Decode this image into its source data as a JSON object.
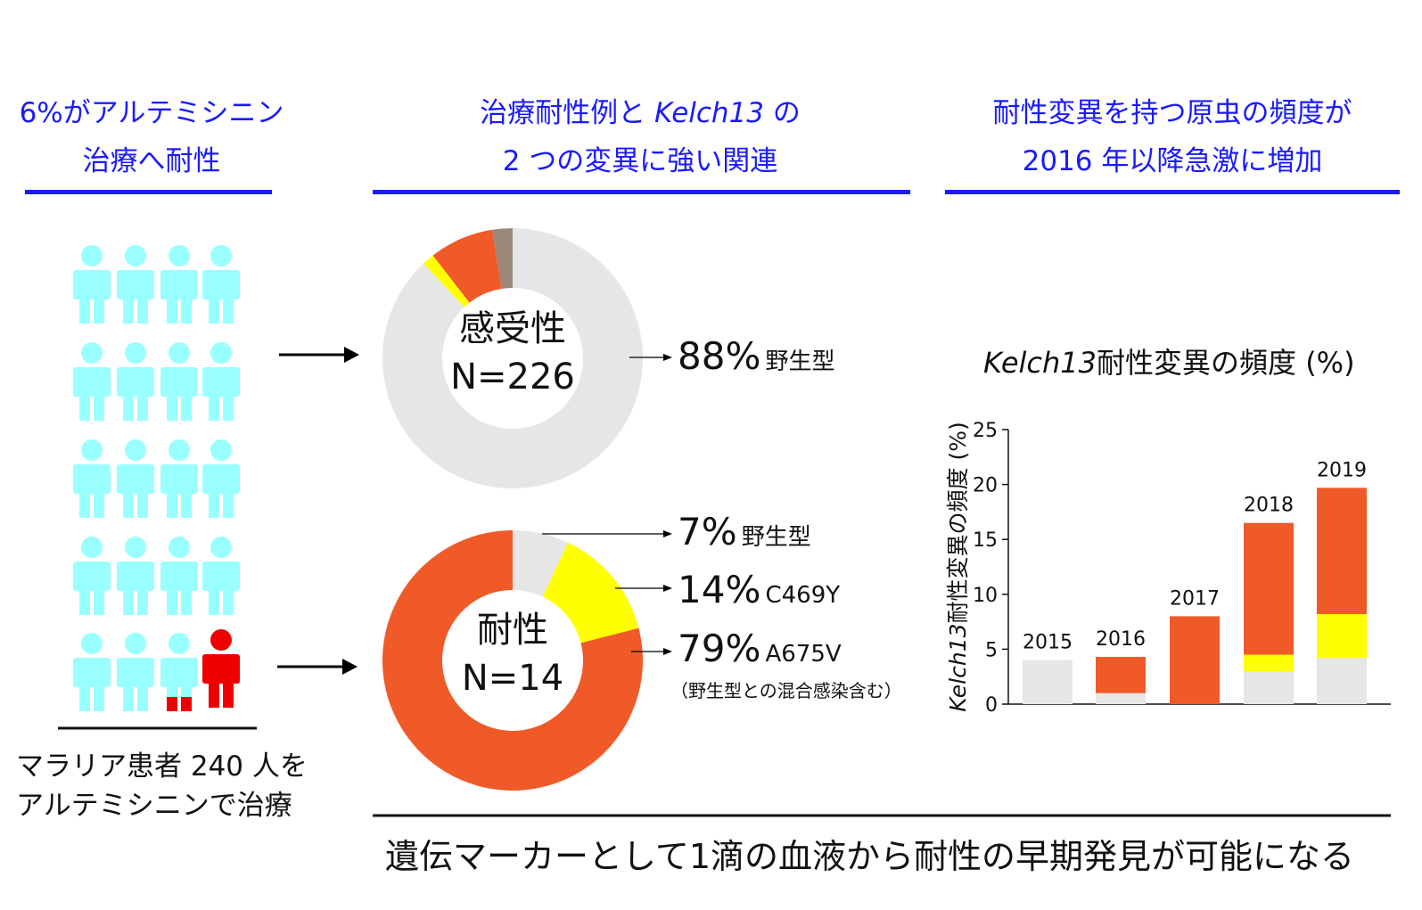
{
  "headers": {
    "col1": {
      "line1": "6%がアルテミシニン",
      "line2": "治療へ耐性"
    },
    "col2": {
      "line1_a": "治療耐性例と ",
      "line1_i": "Kelch13",
      "line1_b": " の",
      "line2": "2 つの変異に強い関連"
    },
    "col3": {
      "line1": "耐性変異を持つ原虫の頻度が",
      "line2": "2016 年以降急激に増加"
    }
  },
  "patients": {
    "caption_line1": "マラリア患者 240 人を",
    "caption_line2": "アルテミシニンで治療",
    "colors": {
      "susceptible": "#99ffff",
      "resistant": "#ee0000"
    }
  },
  "donuts": [
    {
      "center_line1": "感受性",
      "center_line2": "N=226",
      "slices": [
        {
          "value": 88,
          "color": "#e6e6e6"
        },
        {
          "value": 1.5,
          "color": "#ffff00"
        },
        {
          "value": 8,
          "color": "#f05a28"
        },
        {
          "value": 2.5,
          "color": "#9b8878"
        }
      ],
      "labels": [
        {
          "pct": "88%",
          "text": "野生型"
        }
      ]
    },
    {
      "center_line1": "耐性",
      "center_line2": "N=14",
      "slices": [
        {
          "value": 7,
          "color": "#e6e6e6"
        },
        {
          "value": 14,
          "color": "#ffff00"
        },
        {
          "value": 79,
          "color": "#f05a28"
        }
      ],
      "labels": [
        {
          "pct": "7%",
          "text": "野生型"
        },
        {
          "pct": "14%",
          "text": "C469Y"
        },
        {
          "pct": "79%",
          "text": "A675V",
          "note": "（野生型との混合感染含む）"
        }
      ]
    }
  ],
  "chart_title": {
    "italic": "Kelch13",
    "rest": "耐性変異の頻度 (%)"
  },
  "chart_data": {
    "type": "bar",
    "stacked": true,
    "categories": [
      "2015",
      "2016",
      "2017",
      "2018",
      "2019"
    ],
    "series": [
      {
        "values": [
          4,
          1,
          0,
          3,
          4.2
        ],
        "color": "#e6e6e6"
      },
      {
        "values": [
          0,
          0,
          0,
          1.5,
          4
        ],
        "color": "#ffff00"
      },
      {
        "values": [
          0,
          3.3,
          8,
          12,
          11.5
        ],
        "color": "#f05a28"
      }
    ],
    "ylabel_italic": "Kelch13",
    "ylabel": "耐性変異の頻度 (%)",
    "ylim": [
      0,
      25
    ],
    "yticks": [
      0,
      5,
      10,
      15,
      20,
      25
    ],
    "grid": false
  },
  "bottom_text": "遺伝マーカーとして1滴の血液から耐性の早期発見が可能になる"
}
